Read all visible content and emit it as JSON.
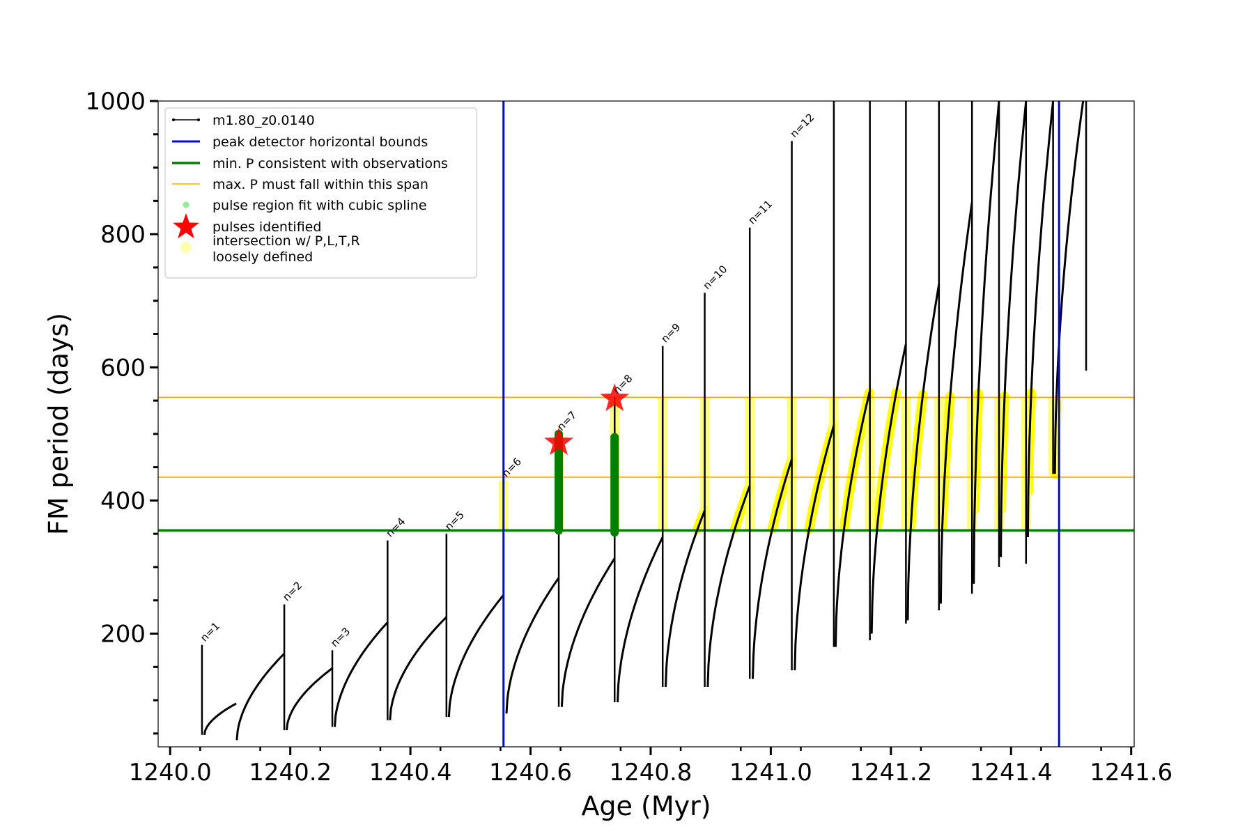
{
  "chart_data": {
    "type": "line",
    "xlabel": "Age (Myr)",
    "ylabel": "FM period (days)",
    "xlim": [
      1239.98,
      1241.605
    ],
    "ylim": [
      30,
      1000
    ],
    "xticks": [
      1240.0,
      1240.2,
      1240.4,
      1240.6,
      1240.8,
      1241.0,
      1241.2,
      1241.4,
      1241.6
    ],
    "xtick_labels": [
      "1240.0",
      "1240.2",
      "1240.4",
      "1240.6",
      "1240.8",
      "1241.0",
      "1241.2",
      "1241.4",
      "1241.6"
    ],
    "yticks": [
      200,
      400,
      600,
      800,
      1000
    ],
    "ytick_labels": [
      "200",
      "400",
      "600",
      "800",
      "1000"
    ],
    "grid": false,
    "legend_position": "top-left",
    "legend": [
      {
        "label": "m1.80_z0.0140",
        "kind": "line-marker",
        "color": "#000000"
      },
      {
        "label": "peak detector horizontal bounds",
        "kind": "line",
        "color": "#0000ff"
      },
      {
        "label": "min. P consistent with observations",
        "kind": "thick-line",
        "color": "#008000"
      },
      {
        "label": "max. P must fall within this span",
        "kind": "thin-line",
        "color": "#ffa500"
      },
      {
        "label": "pulse region fit with cubic spline",
        "kind": "dot",
        "color": "#90ee90"
      },
      {
        "label": "pulses identified",
        "kind": "star",
        "color": "#ff0000"
      },
      {
        "label": "intersection w/ P,L,T,R",
        "label2": "loosely defined",
        "kind": "dot",
        "color": "#ffff99"
      }
    ],
    "vertical_bounds": [
      1240.555,
      1241.48
    ],
    "min_period": 355,
    "max_period_span": [
      435,
      555
    ],
    "pulses": [
      {
        "n": "n=1",
        "age": 1240.053,
        "peak": 183,
        "next_min": 48
      },
      {
        "n": "n=2",
        "age": 1240.19,
        "peak": 244,
        "next_min": 55
      },
      {
        "n": "n=3",
        "age": 1240.27,
        "peak": 175,
        "next_min": 60
      },
      {
        "n": "n=4",
        "age": 1240.362,
        "peak": 340,
        "next_min": 70
      },
      {
        "n": "n=5",
        "age": 1240.46,
        "peak": 350,
        "next_min": 75
      },
      {
        "n": "n=6",
        "age": 1240.555,
        "peak": 430,
        "next_min": 80
      },
      {
        "n": "n=7",
        "age": 1240.647,
        "peak": 500,
        "next_min": 90
      },
      {
        "n": "n=8",
        "age": 1240.74,
        "peak": 555,
        "next_min": 97
      },
      {
        "n": "n=9",
        "age": 1240.82,
        "peak": 632,
        "next_min": 120
      },
      {
        "n": "n=10",
        "age": 1240.89,
        "peak": 712,
        "next_min": 120
      },
      {
        "n": "n=11",
        "age": 1240.965,
        "peak": 810,
        "next_min": 132
      },
      {
        "n": "n=12",
        "age": 1241.035,
        "peak": 940,
        "next_min": 145
      }
    ],
    "arches": [
      {
        "start": 1240.057,
        "end": 1240.11,
        "min": 48,
        "max": 95
      },
      {
        "start": 1240.111,
        "end": 1240.19,
        "min": 40,
        "max": 170
      },
      {
        "start": 1240.194,
        "end": 1240.27,
        "min": 55,
        "max": 148
      },
      {
        "start": 1240.274,
        "end": 1240.362,
        "min": 60,
        "max": 217
      },
      {
        "start": 1240.366,
        "end": 1240.46,
        "min": 70,
        "max": 225
      },
      {
        "start": 1240.464,
        "end": 1240.555,
        "min": 75,
        "max": 258
      },
      {
        "start": 1240.56,
        "end": 1240.647,
        "min": 80,
        "max": 284
      },
      {
        "start": 1240.652,
        "end": 1240.74,
        "min": 90,
        "max": 313
      },
      {
        "start": 1240.745,
        "end": 1240.82,
        "min": 97,
        "max": 345
      },
      {
        "start": 1240.825,
        "end": 1240.89,
        "min": 120,
        "max": 385
      },
      {
        "start": 1240.895,
        "end": 1240.965,
        "min": 120,
        "max": 422
      },
      {
        "start": 1240.97,
        "end": 1241.035,
        "min": 132,
        "max": 462
      },
      {
        "start": 1241.04,
        "end": 1241.105,
        "min": 145,
        "max": 513
      },
      {
        "start": 1241.108,
        "end": 1241.165,
        "min": 180,
        "max": 565
      },
      {
        "start": 1241.168,
        "end": 1241.225,
        "min": 200,
        "max": 635
      },
      {
        "start": 1241.228,
        "end": 1241.28,
        "min": 220,
        "max": 725
      },
      {
        "start": 1241.283,
        "end": 1241.335,
        "min": 245,
        "max": 848
      },
      {
        "start": 1241.338,
        "end": 1241.38,
        "min": 275,
        "max": 1000
      },
      {
        "start": 1241.383,
        "end": 1241.425,
        "min": 315,
        "max": 1000
      },
      {
        "start": 1241.428,
        "end": 1241.47,
        "min": 345,
        "max": 1000
      },
      {
        "start": 1241.473,
        "end": 1241.52,
        "min": 440,
        "max": 1000
      }
    ],
    "spikes_beyond": [
      {
        "age": 1241.105,
        "min": 180
      },
      {
        "age": 1241.165,
        "min": 190
      },
      {
        "age": 1241.225,
        "min": 215
      },
      {
        "age": 1241.28,
        "min": 235
      },
      {
        "age": 1241.335,
        "min": 260
      },
      {
        "age": 1241.38,
        "min": 300
      },
      {
        "age": 1241.425,
        "min": 305
      },
      {
        "age": 1241.47,
        "min": 440
      },
      {
        "age": 1241.525,
        "min": 595
      }
    ],
    "identified_pulses": [
      {
        "age": 1240.647,
        "period": 487
      },
      {
        "age": 1240.74,
        "period": 553
      }
    ],
    "spline_regions": [
      {
        "age": 1240.647,
        "low": 355,
        "high": 500
      },
      {
        "age": 1240.74,
        "low": 352,
        "high": 495
      }
    ]
  }
}
